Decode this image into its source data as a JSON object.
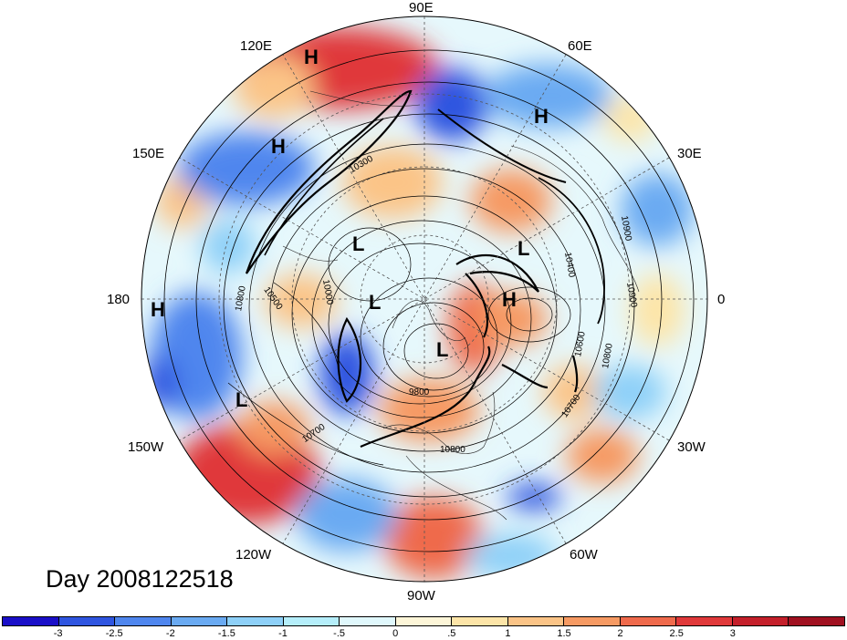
{
  "title": "Day 2008122518",
  "longitude_labels": [
    {
      "id": "90E",
      "text": "90E"
    },
    {
      "id": "60E",
      "text": "60E"
    },
    {
      "id": "30E",
      "text": "30E"
    },
    {
      "id": "0",
      "text": "0"
    },
    {
      "id": "30W",
      "text": "30W"
    },
    {
      "id": "60W",
      "text": "60W"
    },
    {
      "id": "90W",
      "text": "90W"
    },
    {
      "id": "120W",
      "text": "120W"
    },
    {
      "id": "150W",
      "text": "150W"
    },
    {
      "id": "180",
      "text": "180"
    },
    {
      "id": "150E",
      "text": "150E"
    },
    {
      "id": "120E",
      "text": "120E"
    }
  ],
  "pressure_centers": [
    {
      "id": "h1",
      "text": "H"
    },
    {
      "id": "h2",
      "text": "H"
    },
    {
      "id": "h3",
      "text": "H"
    },
    {
      "id": "h4",
      "text": "H"
    },
    {
      "id": "h5",
      "text": "H"
    },
    {
      "id": "l1",
      "text": "L"
    },
    {
      "id": "l2",
      "text": "L"
    },
    {
      "id": "l3",
      "text": "L"
    },
    {
      "id": "l4",
      "text": "L"
    },
    {
      "id": "l5",
      "text": "L"
    }
  ],
  "contour_labels": [
    {
      "id": "c1",
      "text": "10800"
    },
    {
      "id": "c2",
      "text": "10500"
    },
    {
      "id": "c3",
      "text": "10000"
    },
    {
      "id": "c4",
      "text": "10700"
    },
    {
      "id": "c5",
      "text": "9800"
    },
    {
      "id": "c6",
      "text": "10800"
    },
    {
      "id": "c7",
      "text": "10600"
    },
    {
      "id": "c8",
      "text": "10700"
    },
    {
      "id": "c9",
      "text": "10800"
    },
    {
      "id": "c10",
      "text": "10900"
    },
    {
      "id": "c11",
      "text": "10900"
    },
    {
      "id": "c12",
      "text": "10400"
    },
    {
      "id": "c13",
      "text": "10300"
    }
  ],
  "colorbar": {
    "colors": [
      "#1a0fc8",
      "#2f55e0",
      "#4f86ee",
      "#6aaaf2",
      "#8ed0f8",
      "#b5eefa",
      "#e0f8fc",
      "#fdf6d8",
      "#fde5a8",
      "#fbc487",
      "#f69a63",
      "#ef6a4c",
      "#e0393a",
      "#c41f2a",
      "#a01020"
    ],
    "labels": [
      "-3",
      "-2.5",
      "-2",
      "-1.5",
      "-1",
      "-.5",
      "0",
      ".5",
      "1",
      "1.5",
      "2",
      "2.5",
      "3"
    ]
  }
}
